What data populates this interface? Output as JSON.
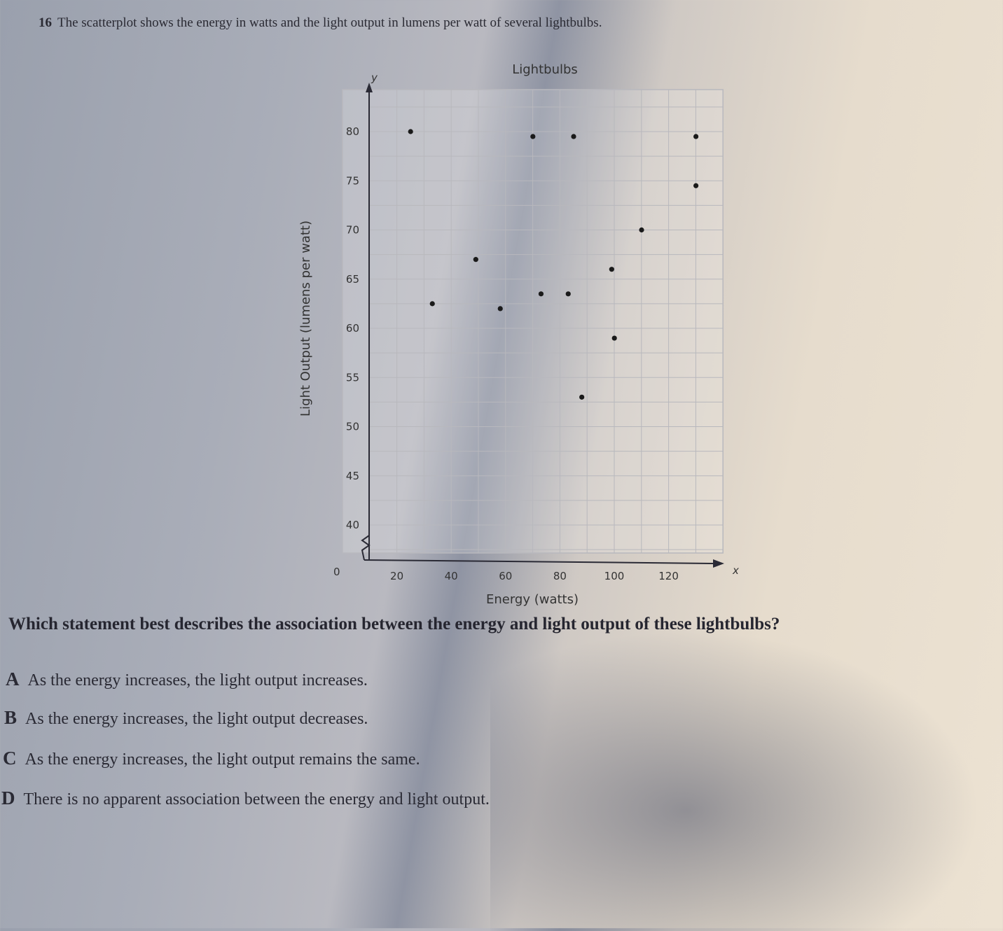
{
  "question": {
    "number": "16",
    "text": "The scatterplot shows the energy in watts and the light output in lumens per watt of several lightbulbs.",
    "prompt": "Which statement best describes the association between the energy and light output of these lightbulbs?",
    "options": [
      {
        "letter": "A",
        "text": "As the energy increases, the light output increases."
      },
      {
        "letter": "B",
        "text": "As the energy increases, the light output decreases."
      },
      {
        "letter": "C",
        "text": "As the energy increases, the light output remains the same."
      },
      {
        "letter": "D",
        "text": "There is no apparent association between the energy and light output."
      }
    ]
  },
  "chart_data": {
    "type": "scatter",
    "title": "Lightbulbs",
    "xlabel": "Energy (watts)",
    "ylabel": "Light Output (lumens per watt)",
    "x_axis_letter": "x",
    "y_axis_letter": "y",
    "origin_label": "0",
    "xlim": [
      0,
      140
    ],
    "ylim": [
      0,
      85
    ],
    "y_axis_break": true,
    "x_ticks": [
      "20",
      "40",
      "60",
      "80",
      "100",
      "120"
    ],
    "y_ticks": [
      "40",
      "45",
      "50",
      "55",
      "60",
      "65",
      "70",
      "75",
      "80"
    ],
    "grid": true,
    "points": [
      {
        "x": 15,
        "y": 80
      },
      {
        "x": 23,
        "y": 62.5
      },
      {
        "x": 39,
        "y": 67
      },
      {
        "x": 48,
        "y": 62
      },
      {
        "x": 60,
        "y": 79.5
      },
      {
        "x": 63,
        "y": 63.5
      },
      {
        "x": 73,
        "y": 63.5
      },
      {
        "x": 75,
        "y": 79.5
      },
      {
        "x": 78,
        "y": 53
      },
      {
        "x": 89,
        "y": 66
      },
      {
        "x": 90,
        "y": 59
      },
      {
        "x": 100,
        "y": 70
      },
      {
        "x": 120,
        "y": 79.5
      },
      {
        "x": 120,
        "y": 74.5
      }
    ],
    "colors": {
      "points": "#1a1a1a",
      "grid": "#b8b8bd",
      "axis": "#2a2a35"
    }
  }
}
